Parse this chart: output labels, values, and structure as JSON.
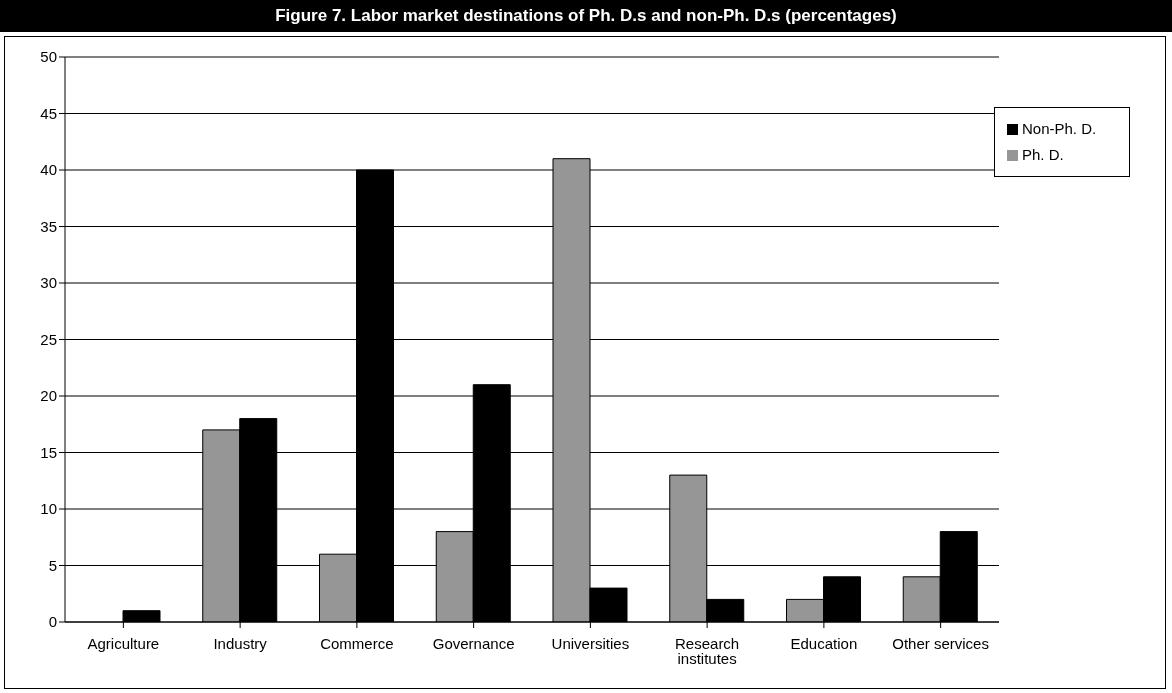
{
  "chart_data": {
    "type": "bar",
    "title": "Figure 7. Labor market destinations of Ph. D.s and non-Ph. D.s (percentages)",
    "categories": [
      "Agriculture",
      "Industry",
      "Commerce",
      "Governance",
      "Universities",
      "Research institutes",
      "Education",
      "Other services"
    ],
    "series": [
      {
        "name": "Ph. D.",
        "color": "#969696",
        "values": [
          0,
          17,
          6,
          8,
          41,
          13,
          2,
          4
        ]
      },
      {
        "name": "Non-Ph. D.",
        "color": "#000000",
        "values": [
          1,
          18,
          40,
          21,
          3,
          2,
          4,
          8
        ]
      }
    ],
    "ylim": [
      0,
      50
    ],
    "yticks": [
      0,
      5,
      10,
      15,
      20,
      25,
      30,
      35,
      40,
      45,
      50
    ],
    "grid": "y",
    "legend": "top right"
  }
}
